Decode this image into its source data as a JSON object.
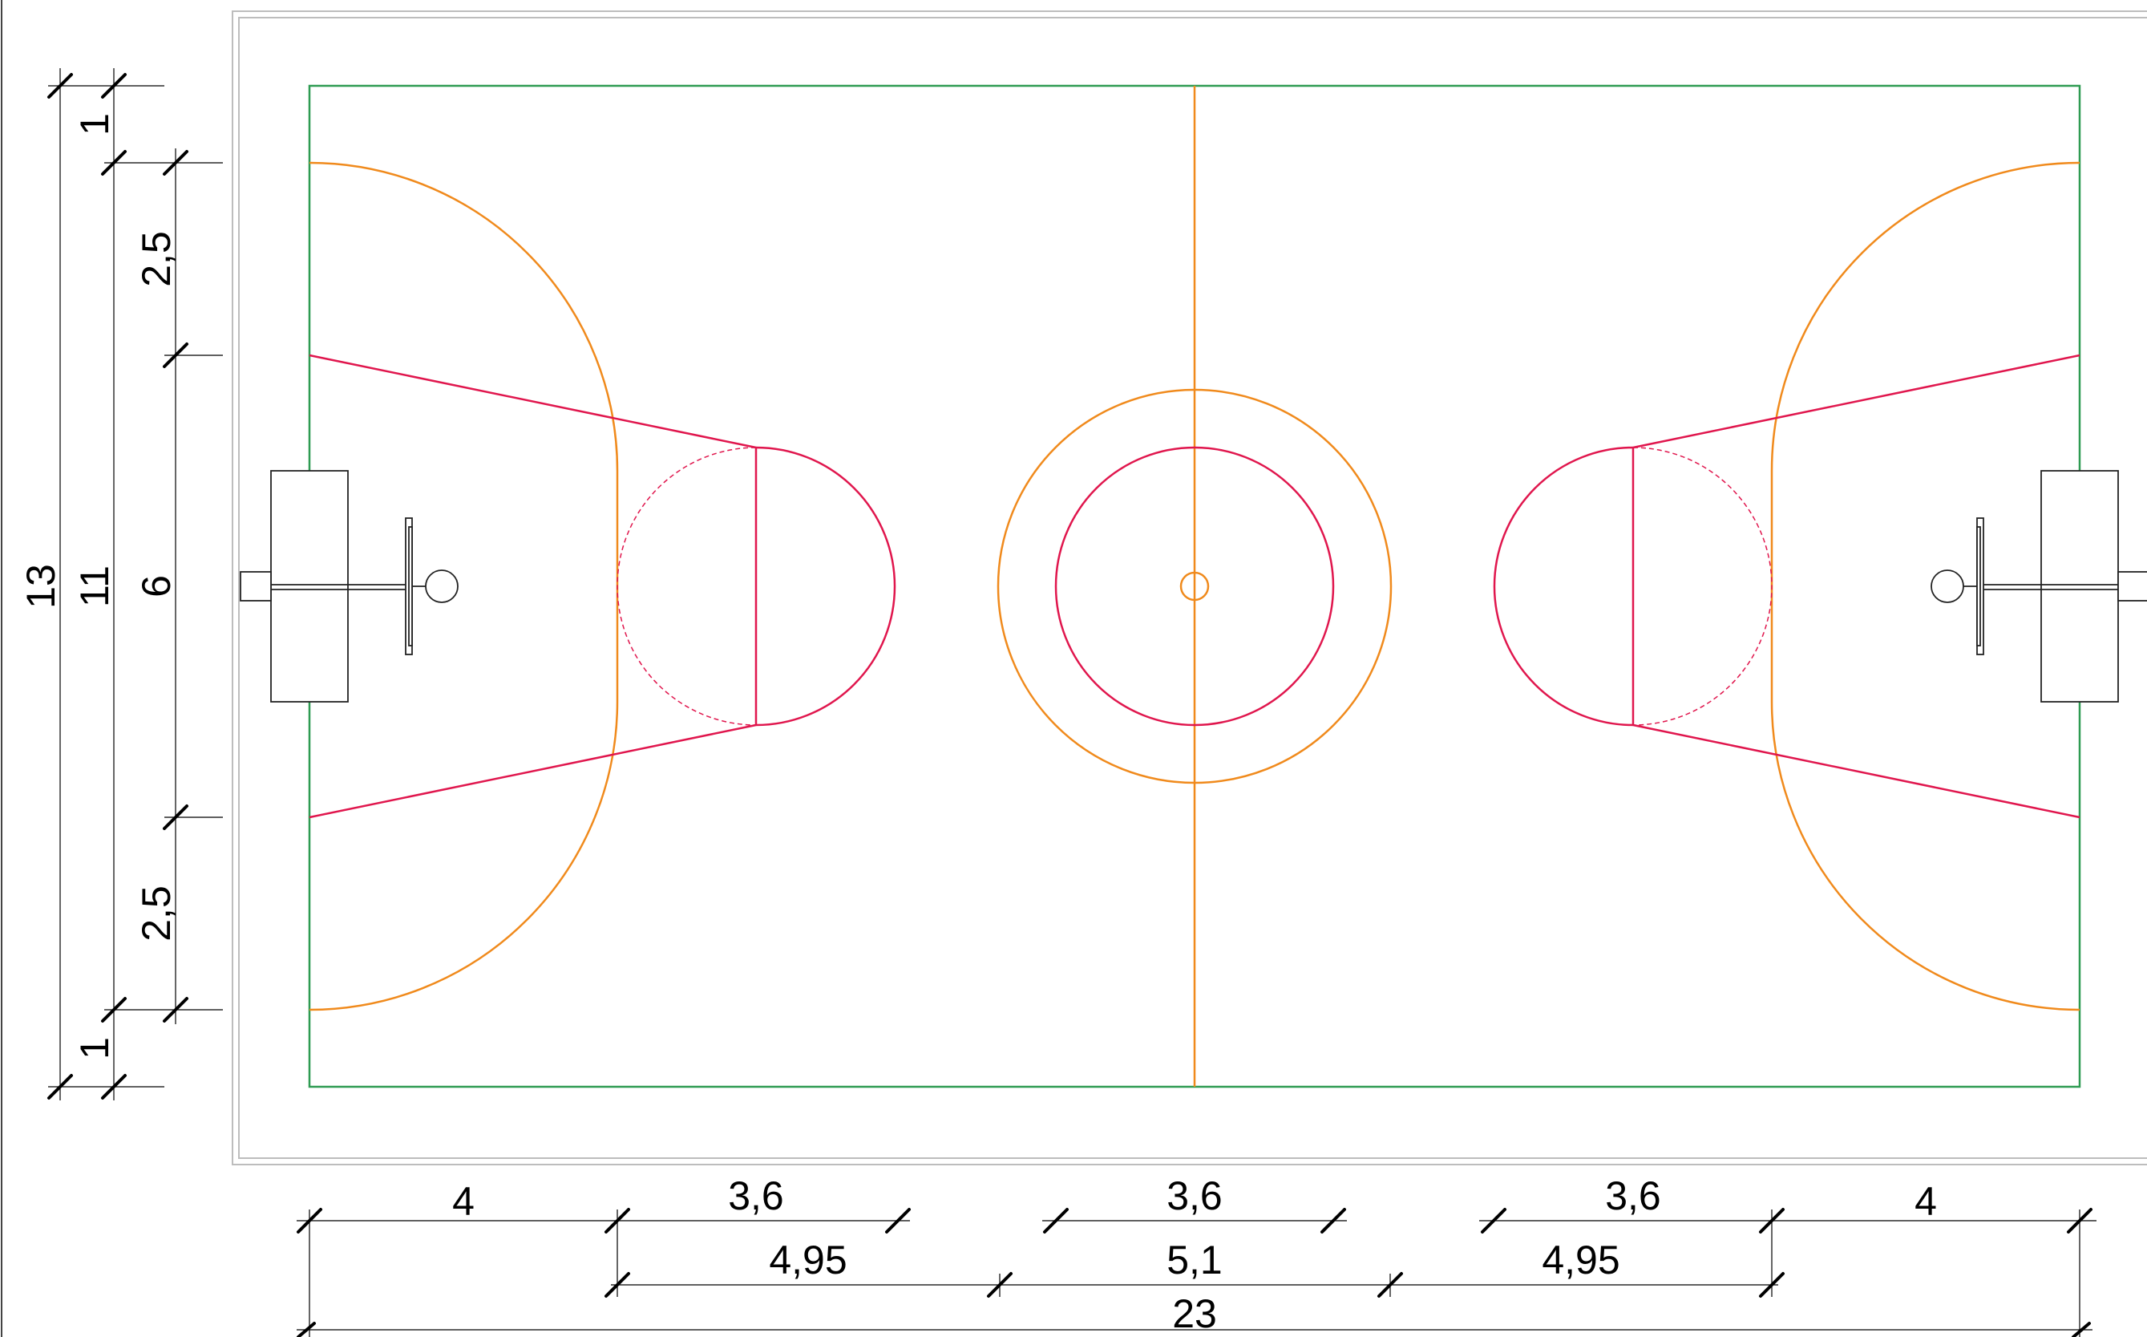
{
  "colors": {
    "court_boundary": "#2e9b52",
    "orange_lines": "#f08a1c",
    "red_lines": "#e0164d",
    "dimension_lines": "#000000",
    "frame": "#bdbdbd"
  },
  "dimensions": {
    "left_outer": {
      "total": "13",
      "top_margin": "1",
      "bottom_margin": "1"
    },
    "left_middle": {
      "court_width": "11",
      "top_segment": "2,5",
      "bottom_segment": "2,5"
    },
    "left_inner": {
      "key_width": "6"
    },
    "bottom_row1": {
      "left_end": "4",
      "left_key": "3,6",
      "center_circle": "3,6",
      "right_key": "3,6",
      "right_end": "4"
    },
    "bottom_row2": {
      "left_mid": "4,95",
      "center_mid": "5,1",
      "right_mid": "4,95"
    },
    "bottom_row3": {
      "total_length": "23"
    }
  }
}
